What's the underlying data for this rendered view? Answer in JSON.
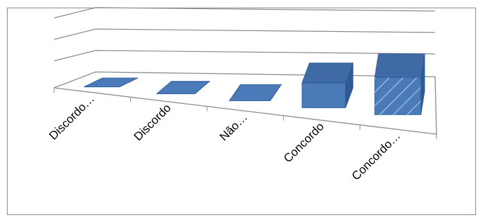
{
  "chart_data": {
    "type": "bar",
    "style": "3d-perspective",
    "title": "",
    "xlabel": "",
    "ylabel": "",
    "categories": [
      "Discordo…",
      "Discordo",
      "Não…",
      "Concordo",
      "Concordo…"
    ],
    "series": [
      {
        "values": [
          0,
          0,
          0,
          1,
          1.5
        ]
      }
    ],
    "ylim": [
      0,
      4
    ],
    "grid": true,
    "legend": "none",
    "colors": {
      "bar": "#4a7ab8",
      "bar_edge": "#2f5f9a",
      "grid": "#8a8a8a",
      "frame": "#8c8c8c"
    }
  }
}
